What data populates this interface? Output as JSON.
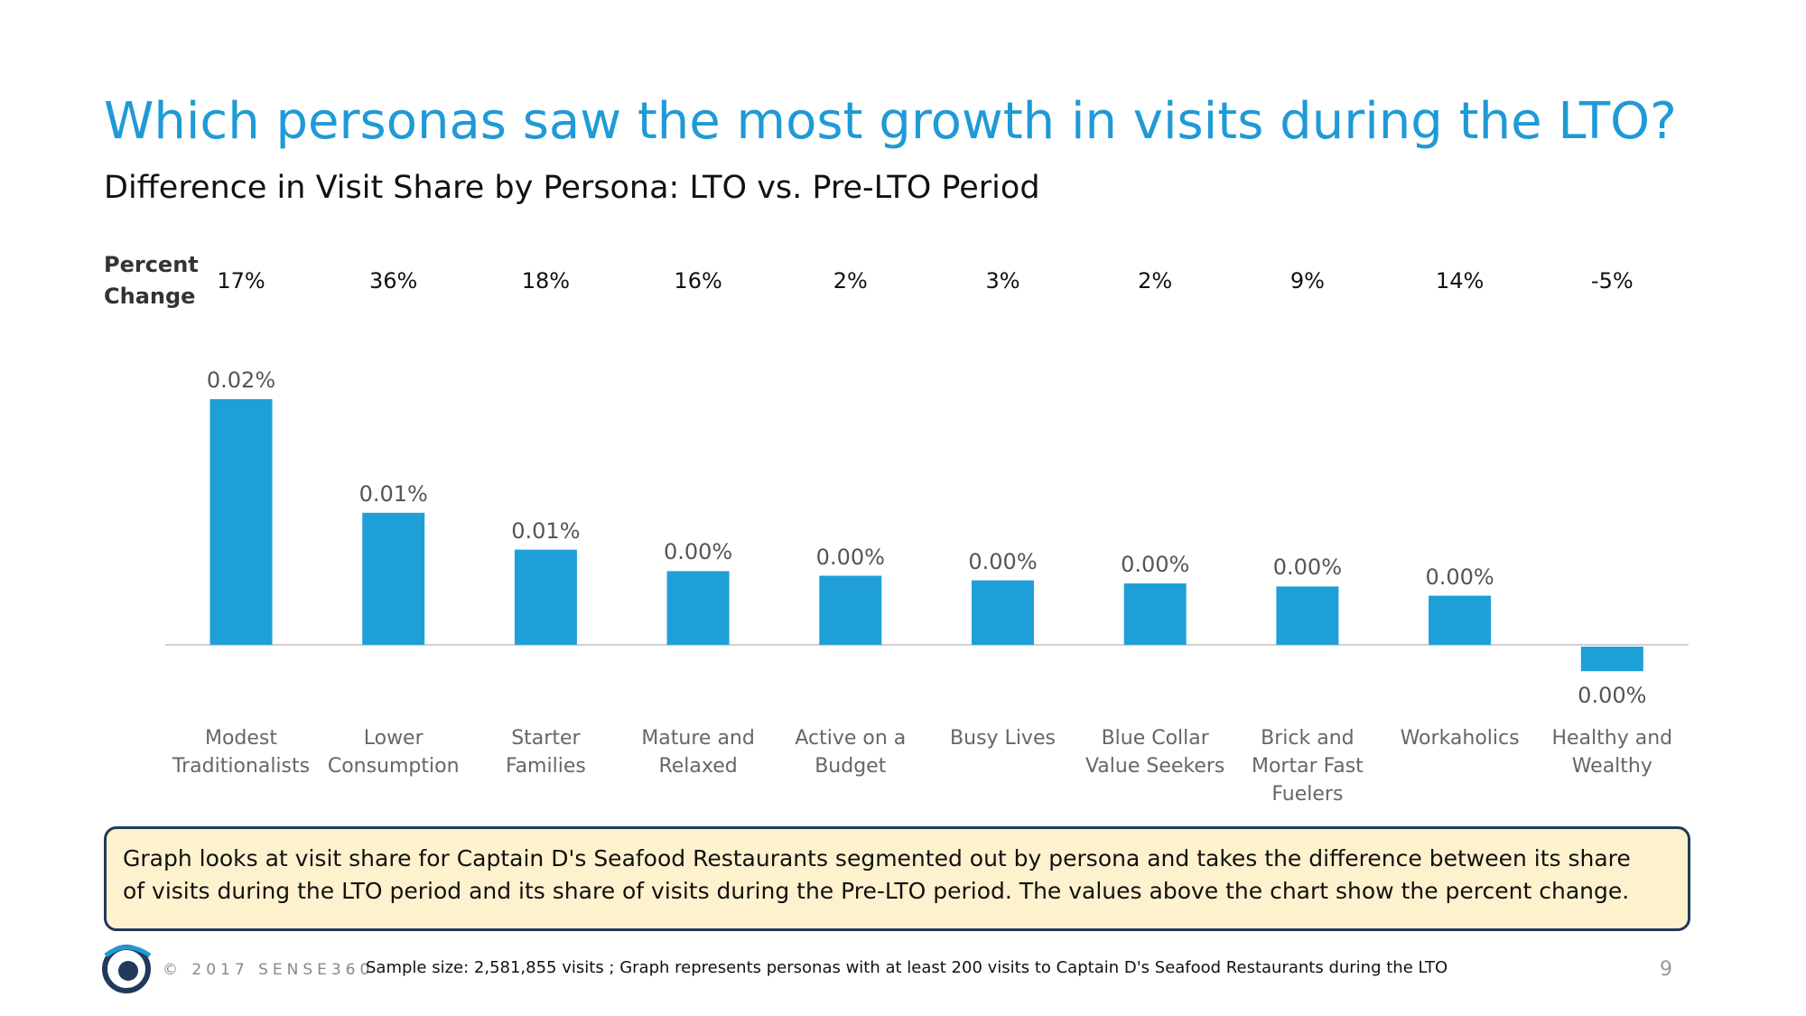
{
  "chart_data": {
    "type": "bar",
    "title": "Which personas saw the most growth in visits during the LTO?",
    "subtitle": "Difference in Visit Share by Persona: LTO vs. Pre-LTO Period",
    "percent_change_label": "Percent Change",
    "percent_change": [
      "17%",
      "36%",
      "18%",
      "16%",
      "2%",
      "3%",
      "2%",
      "9%",
      "14%",
      "-5%"
    ],
    "categories": [
      "Modest\nTraditionalists",
      "Lower\nConsumption",
      "Starter Families",
      "Mature and\nRelaxed",
      "Active on a\nBudget",
      "Busy Lives",
      "Blue Collar\nValue Seekers",
      "Brick and\nMortar Fast\nFuelers",
      "Workaholics",
      "Healthy and\nWealthy"
    ],
    "values": [
      0.016,
      0.0086,
      0.0062,
      0.0048,
      0.0045,
      0.0042,
      0.004,
      0.0038,
      0.0032,
      -0.0016
    ],
    "value_labels": [
      "0.02%",
      "0.01%",
      "0.01%",
      "0.00%",
      "0.00%",
      "0.00%",
      "0.00%",
      "0.00%",
      "0.00%",
      "0.00%"
    ],
    "color": "#1f9fd8"
  },
  "note": "Graph looks at visit share for Captain D's Seafood Restaurants segmented out by persona and takes the difference between its share of visits during the LTO period and its share of visits during the Pre-LTO period.  The values above the chart show the percent change.",
  "footer": {
    "copyright": "© 2017 SENSE360",
    "sample": "Sample size: 2,581,855 visits ; Graph represents personas with at least 200 visits to Captain D's Seafood Restaurants during the LTO",
    "page_number": "9"
  }
}
